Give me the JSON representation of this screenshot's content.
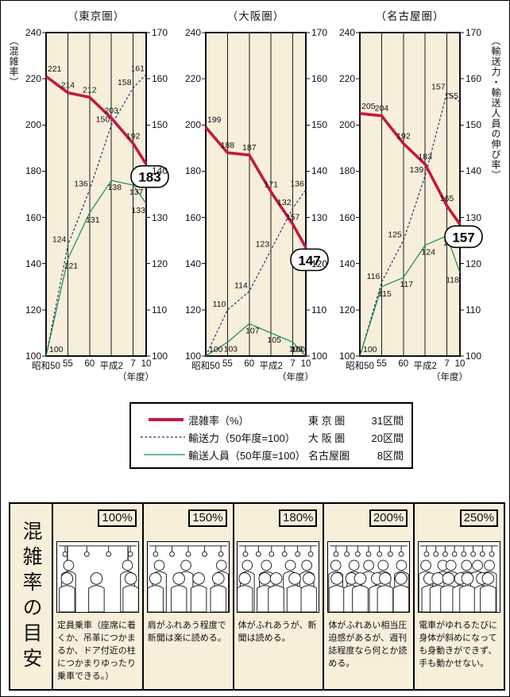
{
  "colors": {
    "plot_background": "#f8efdb",
    "grid_line": "#1a1a1a",
    "congestion_red": "#c3193f",
    "capacity_navy": "#2e2e7a",
    "passengers_green": "#0e8a5c"
  },
  "axes": {
    "left_axis_title": "（混雑率）",
    "right_axis_title": "（輸送力・輸送人員の伸び率）",
    "left_ticks": [
      100,
      120,
      140,
      160,
      180,
      200,
      220,
      240
    ],
    "right_ticks": [
      100,
      110,
      120,
      130,
      140,
      150,
      160,
      170
    ],
    "x_unit": "（年度）"
  },
  "chart_data": [
    {
      "type": "line",
      "title": "（東京圏）",
      "categories": [
        "昭和50",
        "55",
        "60",
        "平成2",
        "7",
        "10"
      ],
      "x_numeric": [
        0,
        5,
        10,
        15,
        20,
        23
      ],
      "left_ylim": [
        100,
        240
      ],
      "right_ylim": [
        100,
        170
      ],
      "grid": "vertical",
      "series": [
        {
          "name": "混雑率",
          "axis": "left",
          "style": "solid-thick",
          "values": [
            221,
            214,
            212,
            203,
            192,
            183
          ],
          "final_callout": "183"
        },
        {
          "name": "輸送力",
          "axis": "right",
          "style": "dashed",
          "values": [
            100,
            124,
            136,
            150,
            158,
            161
          ]
        },
        {
          "name": "輸送人員",
          "axis": "right",
          "style": "solid-thin",
          "values": [
            100,
            121,
            131,
            138,
            137,
            133
          ]
        }
      ]
    },
    {
      "type": "line",
      "title": "（大阪圏）",
      "categories": [
        "昭和50",
        "55",
        "60",
        "平成2",
        "7",
        "10"
      ],
      "x_numeric": [
        0,
        5,
        10,
        15,
        20,
        23
      ],
      "left_ylim": [
        100,
        240
      ],
      "right_ylim": [
        100,
        170
      ],
      "grid": "vertical",
      "series": [
        {
          "name": "混雑率",
          "axis": "left",
          "style": "solid-thick",
          "values": [
            199,
            188,
            187,
            171,
            157,
            147
          ],
          "final_callout": "147"
        },
        {
          "name": "輸送力",
          "axis": "right",
          "style": "dashed",
          "values": [
            100,
            110,
            114,
            123,
            132,
            136
          ]
        },
        {
          "name": "輸送人員",
          "axis": "right",
          "style": "solid-thin",
          "values": [
            100,
            103,
            107,
            105,
            103,
            100
          ]
        }
      ]
    },
    {
      "type": "line",
      "title": "（名古屋圏）",
      "categories": [
        "昭和50",
        "55",
        "60",
        "平成2",
        "7",
        "10"
      ],
      "x_numeric": [
        0,
        5,
        10,
        15,
        20,
        23
      ],
      "left_ylim": [
        100,
        240
      ],
      "right_ylim": [
        100,
        170
      ],
      "grid": "vertical",
      "series": [
        {
          "name": "混雑率",
          "axis": "left",
          "style": "solid-thick",
          "values": [
            205,
            204,
            192,
            183,
            165,
            157
          ],
          "final_callout": "157"
        },
        {
          "name": "輸送力",
          "axis": "right",
          "style": "dashed",
          "values": [
            100,
            116,
            125,
            139,
            157,
            155
          ]
        },
        {
          "name": "輸送人員",
          "axis": "right",
          "style": "solid-thin",
          "values": [
            100,
            115,
            117,
            124,
            126,
            118
          ]
        }
      ]
    }
  ],
  "legend": {
    "rows": [
      {
        "series": "混雑率",
        "label": "混雑率（%）",
        "region": "東 京 圏",
        "count": "31区間"
      },
      {
        "series": "輸送力",
        "label": "輸送力（50年度=100）",
        "region": "大 阪 圏",
        "count": "20区間"
      },
      {
        "series": "輸送人員",
        "label": "輸送人員（50年度=100）",
        "region": "名古屋圏",
        "count": "8区間"
      }
    ]
  },
  "guide": {
    "title": "混雑率の目安",
    "panels": [
      {
        "percent": "100%",
        "crowd_level": 1,
        "description": "定員乗車（座席に着くか、吊革につかまるか、ドア付近の柱につかまりゆったり乗車できる。）"
      },
      {
        "percent": "150%",
        "crowd_level": 2,
        "description": "肩がふれあう程度で新聞は楽に読める。"
      },
      {
        "percent": "180%",
        "crowd_level": 3,
        "description": "体がふれあうが、新聞は読める。"
      },
      {
        "percent": "200%",
        "crowd_level": 4,
        "description": "体がふれあい相当圧迫感があるが、週刊誌程度なら何とか読める。"
      },
      {
        "percent": "250%",
        "crowd_level": 5,
        "description": "電車がゆれるたびに身体が斜めになっても身動きができず、手も動かせない。"
      }
    ]
  }
}
